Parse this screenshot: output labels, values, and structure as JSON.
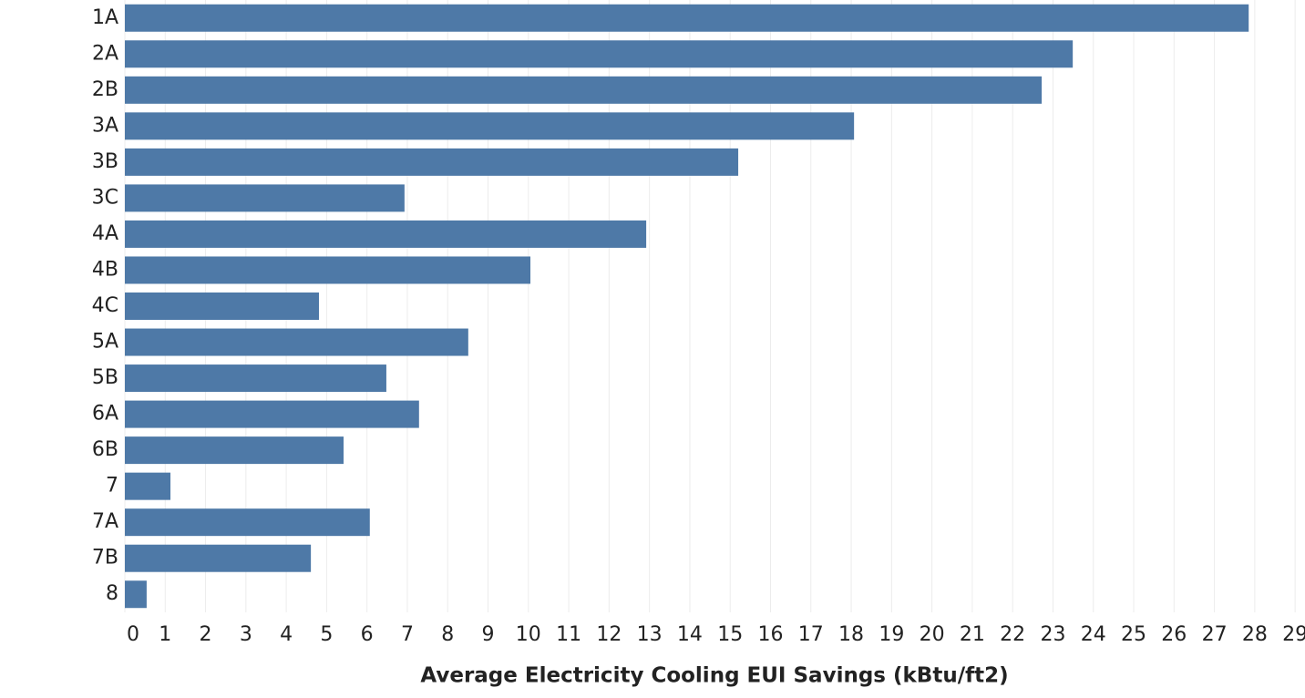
{
  "chart_data": {
    "type": "barh",
    "x_label": "Average Electricity Cooling EUI Savings (kBtu/ft2)",
    "categories": [
      "1A",
      "2A",
      "2B",
      "3A",
      "3B",
      "3C",
      "4A",
      "4B",
      "4C",
      "5A",
      "5B",
      "6A",
      "6B",
      "7",
      "7A",
      "7B",
      "8"
    ],
    "values": [
      27.85,
      23.49,
      22.72,
      18.07,
      15.2,
      6.93,
      12.92,
      10.05,
      4.81,
      8.51,
      6.48,
      7.29,
      5.42,
      1.13,
      6.07,
      4.61,
      0.54
    ],
    "color": "#4e79a7",
    "xlim": [
      0,
      29.2
    ],
    "xticks": [
      0,
      1,
      2,
      3,
      4,
      5,
      6,
      7,
      8,
      9,
      10,
      11,
      12,
      13,
      14,
      15,
      16,
      17,
      18,
      19,
      20,
      21,
      22,
      23,
      24,
      25,
      26,
      27,
      28,
      29
    ],
    "grid": true
  }
}
